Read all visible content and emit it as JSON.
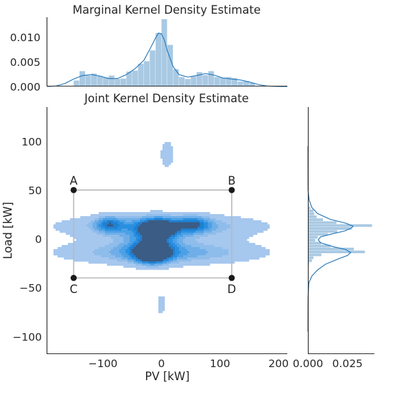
{
  "chart_data": [
    {
      "panel": "top-marginal",
      "type": "histogram+kde",
      "title": "Marginal Kernel Density Estimate",
      "xlabel": "",
      "ylabel": "",
      "xlim": [
        -195,
        215
      ],
      "ylim": [
        0,
        0.014
      ],
      "yticks": [
        0.0,
        0.005,
        0.01
      ],
      "ytick_labels": [
        "0.000",
        "0.005",
        "0.010"
      ],
      "bin_width": 10,
      "bins_start": [
        -150,
        -140,
        -130,
        -120,
        -110,
        -100,
        -90,
        -80,
        -70,
        -60,
        -50,
        -40,
        -30,
        -20,
        -10,
        0,
        10,
        20,
        30,
        40,
        50,
        60,
        70,
        80,
        90,
        100,
        110,
        120,
        130,
        140,
        150
      ],
      "hist_density": [
        0.0012,
        0.0031,
        0.0022,
        0.0026,
        0.0021,
        0.0018,
        0.0022,
        0.0015,
        0.0016,
        0.003,
        0.0032,
        0.0046,
        0.0051,
        0.0073,
        0.0108,
        0.0136,
        0.0084,
        0.0035,
        0.0019,
        0.0015,
        0.002,
        0.0029,
        0.0023,
        0.0031,
        0.0019,
        0.0018,
        0.0019,
        0.0017,
        0.001,
        0.0011,
        0.0007
      ],
      "kde_x": [
        -195,
        -180,
        -165,
        -150,
        -135,
        -120,
        -105,
        -90,
        -75,
        -60,
        -45,
        -30,
        -20,
        -10,
        -5,
        0,
        5,
        10,
        20,
        30,
        45,
        60,
        75,
        90,
        105,
        120,
        135,
        150,
        165,
        180,
        200,
        215
      ],
      "kde_y": [
        0.0,
        0.0001,
        0.0006,
        0.0015,
        0.0022,
        0.0024,
        0.0021,
        0.0016,
        0.0016,
        0.0024,
        0.0036,
        0.0053,
        0.0075,
        0.0098,
        0.0108,
        0.0106,
        0.0094,
        0.0072,
        0.004,
        0.0024,
        0.0019,
        0.0022,
        0.0026,
        0.0023,
        0.0017,
        0.0015,
        0.0013,
        0.0009,
        0.0004,
        0.0001,
        0.0,
        0.0
      ],
      "colors": {
        "bar": "#a9c9e3",
        "line": "#2b7bba"
      }
    },
    {
      "panel": "joint",
      "type": "kde-contour",
      "title": "Joint Kernel Density Estimate",
      "xlabel": "PV [kW]",
      "ylabel": "Load [kW]",
      "xlim": [
        -195,
        215
      ],
      "ylim": [
        -118,
        135
      ],
      "xticks": [
        -100,
        0,
        100,
        200
      ],
      "xtick_labels": [
        "−100",
        "0",
        "100",
        "200"
      ],
      "yticks": [
        -100,
        -50,
        0,
        50,
        100
      ],
      "ytick_labels": [
        "−100",
        "−50",
        "0",
        "50",
        "100"
      ],
      "density_blobs": [
        {
          "cx": 0,
          "cy": 13,
          "sx": 120,
          "sy": 9,
          "w": 0.55
        },
        {
          "cx": 0,
          "cy": -14,
          "sx": 120,
          "sy": 9,
          "w": 0.55
        },
        {
          "cx": -90,
          "cy": 15,
          "sx": 16,
          "sy": 6,
          "w": 0.45
        },
        {
          "cx": -5,
          "cy": 10,
          "sx": 20,
          "sy": 7,
          "w": 0.8
        },
        {
          "cx": 55,
          "cy": 15,
          "sx": 20,
          "sy": 6,
          "w": 0.45
        },
        {
          "cx": -15,
          "cy": -14,
          "sx": 18,
          "sy": 7,
          "w": 1.0
        },
        {
          "cx": -20,
          "cy": -5,
          "sx": 32,
          "sy": 15,
          "w": 0.35
        },
        {
          "cx": 10,
          "cy": 87,
          "sx": 10,
          "sy": 12,
          "w": 0.3
        },
        {
          "cx": 0,
          "cy": -67,
          "sx": 7,
          "sy": 9,
          "w": 0.28
        }
      ],
      "contour_levels": [
        0.17,
        0.35,
        0.45,
        0.55,
        0.65,
        0.75,
        0.85
      ],
      "contour_colors": [
        "#a6c7ee",
        "#8fbdeb",
        "#6faee8",
        "#4ba0e6",
        "#2a8fe0",
        "#1f7fd0",
        "#3a5c85"
      ],
      "box": {
        "corners": [
          {
            "label": "A",
            "x": -150,
            "y": 50
          },
          {
            "label": "B",
            "x": 120,
            "y": 50
          },
          {
            "label": "C",
            "x": -150,
            "y": -40
          },
          {
            "label": "D",
            "x": 120,
            "y": -40
          }
        ],
        "line_color": "#b8b8b8",
        "point_color": "#1a1a1a"
      }
    },
    {
      "panel": "right-marginal",
      "type": "histogram+kde",
      "orientation": "horizontal",
      "xlim": [
        0,
        0.042
      ],
      "xticks": [
        0.0,
        0.025
      ],
      "xtick_labels": [
        "0.000",
        "0.025"
      ],
      "bin_width": 3,
      "bins_start": [
        -27,
        -24,
        -21,
        -18,
        -15,
        -12,
        -9,
        -6,
        -3,
        0,
        3,
        6,
        9,
        12,
        15,
        18,
        21,
        24,
        27,
        30,
        33
      ],
      "hist_density": [
        0.0008,
        0.0025,
        0.0035,
        0.0085,
        0.036,
        0.029,
        0.0142,
        0.0082,
        0.0046,
        0.0062,
        0.0125,
        0.0185,
        0.0275,
        0.0405,
        0.018,
        0.0095,
        0.0055,
        0.004,
        0.0035,
        0.0015,
        0.0006
      ],
      "kde_y": [
        -95,
        -60,
        -45,
        -38,
        -32,
        -26,
        -20,
        -17,
        -14,
        -11,
        -8,
        -4,
        -1,
        2,
        5,
        8,
        11,
        13,
        16,
        20,
        26,
        32,
        40,
        50,
        95
      ],
      "kde_x": [
        0.0,
        0.0001,
        0.0006,
        0.0025,
        0.006,
        0.011,
        0.02,
        0.025,
        0.027,
        0.024,
        0.016,
        0.008,
        0.0065,
        0.008,
        0.015,
        0.023,
        0.0275,
        0.0285,
        0.024,
        0.014,
        0.006,
        0.0025,
        0.0008,
        0.0001,
        0.0
      ],
      "colors": {
        "bar": "#a9c9e3",
        "line": "#2b7bba"
      }
    }
  ]
}
